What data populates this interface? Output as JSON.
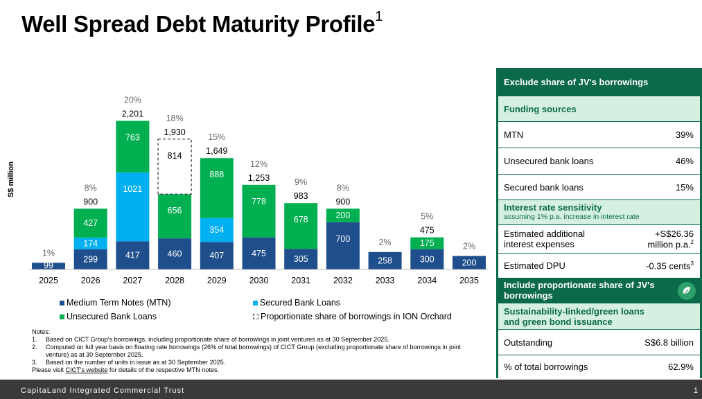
{
  "title": "Well Spread Debt Maturity Profile",
  "title_sup": "1",
  "chart_data": {
    "type": "bar",
    "stacked": true,
    "ylabel": "S$ million",
    "categories": [
      "2025",
      "2026",
      "2027",
      "2028",
      "2029",
      "2030",
      "2031",
      "2032",
      "2033",
      "2034",
      "2035"
    ],
    "series": [
      {
        "name": "Medium Term Notes (MTN)",
        "color": "#1f4e8c",
        "values": [
          99,
          299,
          417,
          460,
          407,
          475,
          305,
          700,
          258,
          300,
          200
        ]
      },
      {
        "name": "Secured Bank Loans",
        "color": "#00b0f0",
        "values": [
          0,
          174,
          1021,
          0,
          354,
          0,
          0,
          0,
          0,
          0,
          0
        ]
      },
      {
        "name": "Unsecured Bank Loans",
        "color": "#00b050",
        "values": [
          0,
          427,
          763,
          656,
          888,
          778,
          678,
          200,
          0,
          175,
          0
        ]
      },
      {
        "name": "Proportionate share of borrowings in ION Orchard",
        "color": "#ffffff",
        "values": [
          0,
          0,
          0,
          814,
          0,
          0,
          0,
          0,
          0,
          0,
          0
        ]
      }
    ],
    "totals": [
      "",
      "900",
      "2,201",
      "1,930",
      "1,649",
      "1,253",
      "983",
      "900",
      "",
      "475",
      ""
    ],
    "percentages": [
      "1%",
      "8%",
      "20%",
      "18%",
      "15%",
      "12%",
      "9%",
      "8%",
      "2%",
      "5%",
      "2%"
    ],
    "ylim": [
      0,
      2300
    ],
    "legend": "bottom"
  },
  "notes": {
    "heading": "Notes:",
    "items": [
      {
        "num": "1.",
        "text": "Based on CICT Group's borrowings, including proportionate share of borrowings in joint ventures as at 30 September 2025."
      },
      {
        "num": "2.",
        "text": "Computed on full year basis on floating rate borrowings (26% of total borrowings) of CICT Group (excluding proportionate share of borrowings in joint venture) as at 30 September 2025."
      },
      {
        "num": "3.",
        "text": "Based on the number of units in issue as at 30 September 2025."
      }
    ],
    "visit_pre": "Please visit ",
    "visit_link": "CICT's website",
    "visit_post": " for details of the respective MTN notes."
  },
  "panel": {
    "exclude_header": "Exclude share of JV's borrowings",
    "funding_header": "Funding sources",
    "funding_rows": [
      {
        "label": "MTN",
        "value": "39%"
      },
      {
        "label": "Unsecured bank loans",
        "value": "46%"
      },
      {
        "label": "Secured bank loans",
        "value": "15%"
      }
    ],
    "irs_header": "Interest rate sensitivity",
    "irs_sub": "assuming 1% p.a. increase in interest rate",
    "interest_label_1": "Estimated additional",
    "interest_label_2": "interest expenses",
    "interest_value_1": "+S$26.36",
    "interest_value_2": "million p.a.",
    "interest_sup": "2",
    "dpu_label": "Estimated DPU",
    "dpu_value": "-0.35 cents",
    "dpu_sup": "3",
    "include_header_1": "Include proportionate share of JV's",
    "include_header_2": "borrowings",
    "green_header_1": "Sustainability-linked/green loans",
    "green_header_2": "and green bond issuance",
    "outstanding_label": "Outstanding",
    "outstanding_value": "S$6.8 billion",
    "pct_label": "% of total borrowings",
    "pct_value": "62.9%"
  },
  "footer": {
    "brand": "CapitaLand Integrated Commercial Trust",
    "page": "1"
  },
  "icons": {
    "leaf": "leaf-icon"
  }
}
